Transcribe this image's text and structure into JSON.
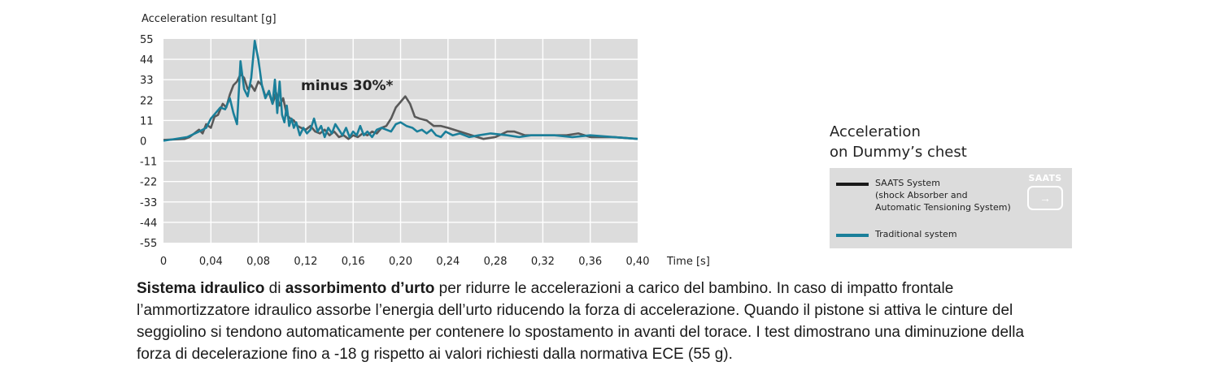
{
  "chart_data": {
    "type": "line",
    "ylabel": "Acceleration resultant [g]",
    "xlabel": "Time [s]",
    "xlim": [
      0,
      0.4
    ],
    "ylim": [
      -55,
      55
    ],
    "yticks": [
      55,
      44,
      33,
      22,
      11,
      0,
      -11,
      -22,
      -33,
      -44,
      -55
    ],
    "xticks": [
      "0",
      "0,04",
      "0,08",
      "0,12",
      "0,16",
      "0,20",
      "0,24",
      "0,28",
      "0,32",
      "0,36",
      "0,40"
    ],
    "grid": true,
    "annotation": "minus 30%*",
    "series": [
      {
        "name": "SAATS System\n(shock Absorber and\nAutomatic Tensioning System)",
        "color": "#595959",
        "points": [
          [
            0,
            0.5
          ],
          [
            0.018,
            1
          ],
          [
            0.022,
            2
          ],
          [
            0.026,
            4
          ],
          [
            0.03,
            6
          ],
          [
            0.033,
            4
          ],
          [
            0.036,
            9
          ],
          [
            0.04,
            7
          ],
          [
            0.043,
            13
          ],
          [
            0.046,
            14
          ],
          [
            0.05,
            20
          ],
          [
            0.053,
            18
          ],
          [
            0.056,
            25
          ],
          [
            0.059,
            30
          ],
          [
            0.062,
            32
          ],
          [
            0.065,
            36
          ],
          [
            0.068,
            34
          ],
          [
            0.071,
            28
          ],
          [
            0.074,
            30
          ],
          [
            0.077,
            27
          ],
          [
            0.08,
            32
          ],
          [
            0.083,
            30
          ],
          [
            0.086,
            24
          ],
          [
            0.089,
            26
          ],
          [
            0.092,
            20
          ],
          [
            0.095,
            26
          ],
          [
            0.098,
            19
          ],
          [
            0.101,
            23
          ],
          [
            0.104,
            14
          ],
          [
            0.107,
            12
          ],
          [
            0.11,
            11
          ],
          [
            0.113,
            8
          ],
          [
            0.116,
            7
          ],
          [
            0.12,
            6
          ],
          [
            0.124,
            8
          ],
          [
            0.128,
            5
          ],
          [
            0.132,
            4
          ],
          [
            0.136,
            6
          ],
          [
            0.14,
            3
          ],
          [
            0.144,
            5
          ],
          [
            0.148,
            2
          ],
          [
            0.152,
            3
          ],
          [
            0.156,
            1
          ],
          [
            0.16,
            3
          ],
          [
            0.164,
            2
          ],
          [
            0.168,
            4
          ],
          [
            0.172,
            3
          ],
          [
            0.176,
            5
          ],
          [
            0.18,
            4
          ],
          [
            0.184,
            7
          ],
          [
            0.188,
            8
          ],
          [
            0.192,
            12
          ],
          [
            0.196,
            18
          ],
          [
            0.2,
            21
          ],
          [
            0.204,
            24
          ],
          [
            0.208,
            20
          ],
          [
            0.212,
            13
          ],
          [
            0.216,
            12
          ],
          [
            0.222,
            11
          ],
          [
            0.228,
            8
          ],
          [
            0.234,
            8
          ],
          [
            0.24,
            7
          ],
          [
            0.25,
            5
          ],
          [
            0.26,
            3
          ],
          [
            0.27,
            1
          ],
          [
            0.28,
            2
          ],
          [
            0.29,
            5
          ],
          [
            0.296,
            5
          ],
          [
            0.305,
            3
          ],
          [
            0.32,
            3
          ],
          [
            0.34,
            3
          ],
          [
            0.35,
            4
          ],
          [
            0.36,
            2
          ],
          [
            0.38,
            2
          ],
          [
            0.4,
            1
          ]
        ]
      },
      {
        "name": "Traditional system",
        "color": "#1a7f9a",
        "points": [
          [
            0,
            0
          ],
          [
            0.02,
            2
          ],
          [
            0.03,
            5
          ],
          [
            0.036,
            7
          ],
          [
            0.04,
            12
          ],
          [
            0.044,
            15
          ],
          [
            0.048,
            18
          ],
          [
            0.052,
            17
          ],
          [
            0.056,
            23
          ],
          [
            0.059,
            15
          ],
          [
            0.062,
            9
          ],
          [
            0.065,
            43
          ],
          [
            0.068,
            28
          ],
          [
            0.071,
            24
          ],
          [
            0.074,
            34
          ],
          [
            0.077,
            54
          ],
          [
            0.08,
            44
          ],
          [
            0.083,
            30
          ],
          [
            0.086,
            23
          ],
          [
            0.089,
            27
          ],
          [
            0.092,
            20
          ],
          [
            0.094,
            33
          ],
          [
            0.096,
            15
          ],
          [
            0.098,
            32
          ],
          [
            0.1,
            14
          ],
          [
            0.102,
            10
          ],
          [
            0.104,
            19
          ],
          [
            0.106,
            8
          ],
          [
            0.108,
            12
          ],
          [
            0.11,
            7
          ],
          [
            0.112,
            10
          ],
          [
            0.115,
            3
          ],
          [
            0.118,
            7
          ],
          [
            0.121,
            4
          ],
          [
            0.124,
            6
          ],
          [
            0.127,
            12
          ],
          [
            0.13,
            5
          ],
          [
            0.133,
            8
          ],
          [
            0.136,
            2
          ],
          [
            0.139,
            7
          ],
          [
            0.142,
            4
          ],
          [
            0.145,
            9
          ],
          [
            0.148,
            6
          ],
          [
            0.151,
            3
          ],
          [
            0.154,
            7
          ],
          [
            0.157,
            2
          ],
          [
            0.16,
            5
          ],
          [
            0.163,
            3
          ],
          [
            0.166,
            8
          ],
          [
            0.169,
            3
          ],
          [
            0.172,
            5
          ],
          [
            0.176,
            2
          ],
          [
            0.18,
            6
          ],
          [
            0.184,
            7
          ],
          [
            0.188,
            6
          ],
          [
            0.192,
            5
          ],
          [
            0.196,
            9
          ],
          [
            0.2,
            10
          ],
          [
            0.205,
            8
          ],
          [
            0.21,
            7
          ],
          [
            0.214,
            5
          ],
          [
            0.218,
            6
          ],
          [
            0.222,
            4
          ],
          [
            0.226,
            6
          ],
          [
            0.23,
            3
          ],
          [
            0.234,
            2
          ],
          [
            0.238,
            5
          ],
          [
            0.244,
            3
          ],
          [
            0.25,
            4
          ],
          [
            0.258,
            2
          ],
          [
            0.266,
            3
          ],
          [
            0.276,
            4
          ],
          [
            0.29,
            3
          ],
          [
            0.3,
            2
          ],
          [
            0.31,
            3
          ],
          [
            0.33,
            3
          ],
          [
            0.345,
            2
          ],
          [
            0.36,
            3
          ],
          [
            0.38,
            2
          ],
          [
            0.4,
            1
          ]
        ]
      }
    ]
  },
  "legend": {
    "heading_line1": "Acceleration",
    "heading_line2": "on Dummy’s chest",
    "badge_label": "SAATS",
    "badge_icon": "→"
  },
  "description": {
    "bold1": "Sistema idraulico",
    "t1": " di ",
    "bold2": "assorbimento d’urto",
    "rest": " per ridurre le accelerazioni a carico del bambino. In caso di impatto frontale l’ammortizzatore idraulico assorbe l’energia dell’urto riducendo la forza di accelerazione. Quando il pistone si attiva le cinture del seggiolino si tendono automaticamente per contenere lo spostamento in avanti del torace. I test dimostrano una diminuzione della forza di decelerazione fino a -18 g rispetto ai valori richiesti dalla normativa ECE (55 g)."
  }
}
